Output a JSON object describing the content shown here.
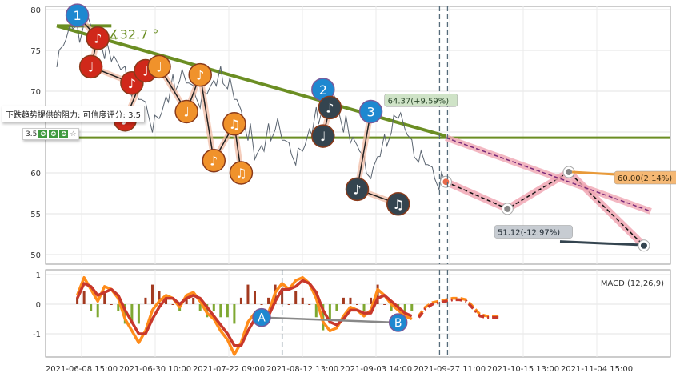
{
  "chart_data": {
    "type": "line",
    "price_yticks": [
      50,
      55,
      60,
      65,
      70,
      75,
      80
    ],
    "macd_yticks": [
      1,
      0,
      -1
    ],
    "x_tick_labels": [
      "2021-06-08 15:00",
      "2021-06-30 10:00",
      "2021-07-22 09:00",
      "2021-08-12 13:00",
      "2021-09-03 14:00",
      "2021-09-27 11:00",
      "2021-10-15 13:00",
      "2021-11-04 15:00"
    ],
    "price_series": [
      74,
      76,
      78,
      77,
      79,
      78,
      77,
      75,
      74,
      73,
      72,
      70,
      69,
      68,
      66,
      67,
      69,
      71,
      72,
      71,
      70,
      69,
      70,
      71,
      72,
      71,
      69,
      67,
      65,
      62,
      63,
      65,
      66,
      64,
      63,
      62,
      63,
      65,
      67,
      69,
      70,
      68,
      66,
      64,
      63,
      61,
      60,
      62,
      64,
      66,
      67,
      65,
      63,
      62,
      61,
      60,
      59,
      59
    ],
    "resistance_line": {
      "from": [
        0,
        78.0
      ],
      "to": [
        57,
        64.5
      ]
    },
    "horizontal_line_value": 64.3,
    "angle_label": "32.7 °",
    "resistance_tip": "下跌趋势提供的阻力: 可信度评分: 3.5",
    "rating_value": "3.5",
    "forecast_labels": {
      "upper": "64.37(+9.59%)",
      "middle": "60.00(2.14%)",
      "lower": "51.12(-12.97%)"
    },
    "forecast_points": [
      [
        57,
        58.9
      ],
      [
        66,
        55.6
      ],
      [
        75,
        60.1
      ],
      [
        86,
        51.1
      ]
    ],
    "projection_line": {
      "from": [
        57,
        64.3
      ],
      "to": [
        87,
        55.3
      ]
    },
    "waves": [
      {
        "label": "1",
        "kind": "blue",
        "x": 3,
        "y": 79.3
      },
      {
        "label": "♪",
        "kind": "red",
        "x": 6,
        "y": 76.5
      },
      {
        "label": "♩",
        "kind": "red",
        "x": 5,
        "y": 73.0
      },
      {
        "label": "♪",
        "kind": "red",
        "x": 11,
        "y": 71.0
      },
      {
        "label": "♩",
        "kind": "red",
        "x": 13,
        "y": 72.5
      },
      {
        "label": "♪",
        "kind": "red",
        "x": 10,
        "y": 66.5
      },
      {
        "label": "♩",
        "kind": "orange",
        "x": 15,
        "y": 73.0
      },
      {
        "label": "♩",
        "kind": "orange",
        "x": 19,
        "y": 67.5
      },
      {
        "label": "♪",
        "kind": "orange",
        "x": 21,
        "y": 72.0
      },
      {
        "label": "♪",
        "kind": "orange",
        "x": 23,
        "y": 61.5
      },
      {
        "label": "♫",
        "kind": "orange",
        "x": 26,
        "y": 66.0
      },
      {
        "label": "♫",
        "kind": "orange",
        "x": 27,
        "y": 60.0
      },
      {
        "label": "2",
        "kind": "blue",
        "x": 39,
        "y": 70.2
      },
      {
        "label": "♪",
        "kind": "dark",
        "x": 40,
        "y": 68.0
      },
      {
        "label": "♩",
        "kind": "dark",
        "x": 39,
        "y": 64.5
      },
      {
        "label": "3",
        "kind": "blue",
        "x": 46,
        "y": 67.5
      },
      {
        "label": "♪",
        "kind": "dark",
        "x": 44,
        "y": 58.0
      },
      {
        "label": "♫",
        "kind": "dark",
        "x": 50,
        "y": 56.2
      }
    ],
    "macd_label": "MACD (12,26,9)",
    "macd_markers": [
      {
        "label": "A",
        "x": 30,
        "y": -0.45
      },
      {
        "label": "B",
        "x": 50,
        "y": -0.62
      }
    ],
    "macd_fast": [
      0.3,
      0.9,
      0.5,
      0.1,
      0.6,
      0.5,
      0.2,
      -0.5,
      -0.9,
      -1.3,
      -0.9,
      -0.2,
      0.1,
      0.3,
      0.2,
      -0.1,
      0.3,
      0.4,
      0.1,
      -0.3,
      -0.5,
      -0.9,
      -1.2,
      -1.7,
      -1.3,
      -0.6,
      -0.3,
      -0.5,
      -0.3,
      0.4,
      0.7,
      0.5,
      0.8,
      0.9,
      0.7,
      0.2,
      -0.6,
      -0.9,
      -0.8,
      -0.4,
      -0.1,
      -0.2,
      -0.4,
      -0.2,
      0.5,
      0.3,
      0.0,
      -0.2,
      -0.4,
      -0.5
    ],
    "macd_slow": [
      0.2,
      0.7,
      0.6,
      0.3,
      0.4,
      0.5,
      0.3,
      -0.2,
      -0.6,
      -1.0,
      -1.0,
      -0.5,
      -0.1,
      0.2,
      0.2,
      0.0,
      0.2,
      0.3,
      0.2,
      -0.1,
      -0.4,
      -0.7,
      -1.0,
      -1.4,
      -1.4,
      -0.9,
      -0.5,
      -0.5,
      -0.4,
      0.1,
      0.5,
      0.5,
      0.6,
      0.8,
      0.7,
      0.4,
      -0.2,
      -0.6,
      -0.7,
      -0.5,
      -0.2,
      -0.2,
      -0.3,
      -0.3,
      0.2,
      0.3,
      0.1,
      -0.1,
      -0.3,
      -0.4
    ],
    "macd_forecast": [
      -0.4,
      -0.1,
      0.05,
      0.1,
      0.15,
      0.2,
      0.2,
      0.15,
      -0.1,
      -0.35,
      -0.4,
      -0.4,
      -0.4
    ],
    "colors": {
      "resistance": "#6b8e23",
      "blue_badge": "#1e88d0",
      "red_badge": "#d0281a",
      "orange_badge": "#f0922b",
      "dark_badge": "#34444f",
      "forecast_band": "#f1a7b4",
      "macd_fast": "#ff8c1a",
      "macd_slow": "#c8382b",
      "histogram_pos": "#a33a20",
      "histogram_neg": "#7fa832"
    }
  }
}
